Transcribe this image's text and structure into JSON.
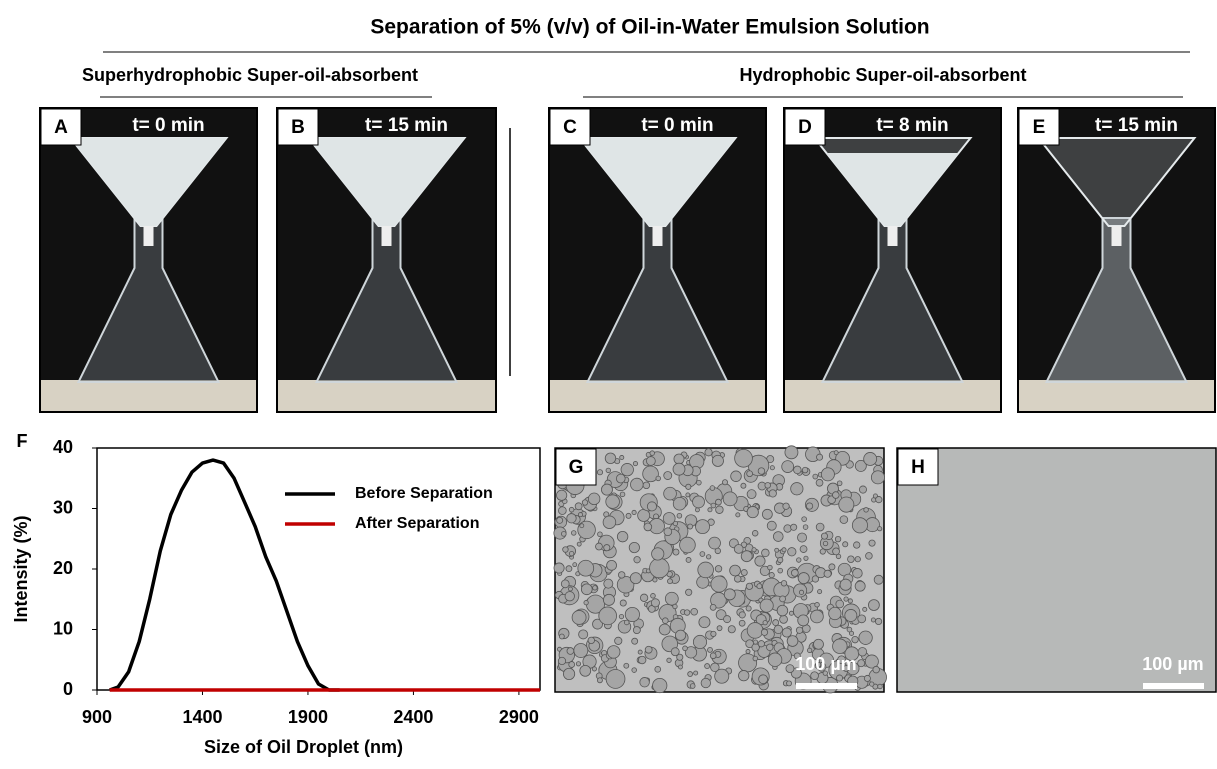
{
  "title": "Separation of 5% (v/v) of Oil-in-Water Emulsion Solution",
  "groups": [
    "Superhydrophobic Super-oil-absorbent",
    "Hydrophobic Super-oil-absorbent"
  ],
  "panels": [
    {
      "label": "A",
      "time": "t= 0 min"
    },
    {
      "label": "B",
      "time": "t= 15 min"
    },
    {
      "label": "C",
      "time": "t= 0 min"
    },
    {
      "label": "D",
      "time": "t= 8 min"
    },
    {
      "label": "E",
      "time": "t= 15 min"
    }
  ],
  "chart_data": {
    "type": "line",
    "panel_label": "F",
    "x_label": "Size of Oil Droplet (nm)",
    "y_label": "Intensity (%)",
    "xlim": [
      900,
      3000
    ],
    "xticks": [
      900,
      1400,
      1900,
      2400,
      2900
    ],
    "ylim": [
      0,
      40
    ],
    "yticks": [
      0,
      10,
      20,
      30,
      40
    ],
    "legend": "upper right",
    "series": [
      {
        "name": "Before Separation",
        "color": "#000000",
        "x": [
          960,
          1000,
          1050,
          1100,
          1150,
          1200,
          1250,
          1300,
          1350,
          1400,
          1450,
          1500,
          1550,
          1600,
          1650,
          1700,
          1750,
          1800,
          1850,
          1900,
          1950,
          2000,
          2050
        ],
        "values": [
          0,
          0.5,
          3,
          8,
          15,
          23,
          29,
          33,
          36,
          37.5,
          38,
          37.5,
          35,
          31,
          27,
          22,
          18,
          13,
          8,
          4,
          1,
          0,
          0
        ]
      },
      {
        "name": "After Separation",
        "color": "#c00000",
        "x": [
          960,
          3000
        ],
        "values": [
          0,
          0
        ]
      }
    ]
  },
  "micrographs": [
    {
      "label": "G",
      "scale": "100 µm"
    },
    {
      "label": "H",
      "scale": "100 µm"
    }
  ]
}
